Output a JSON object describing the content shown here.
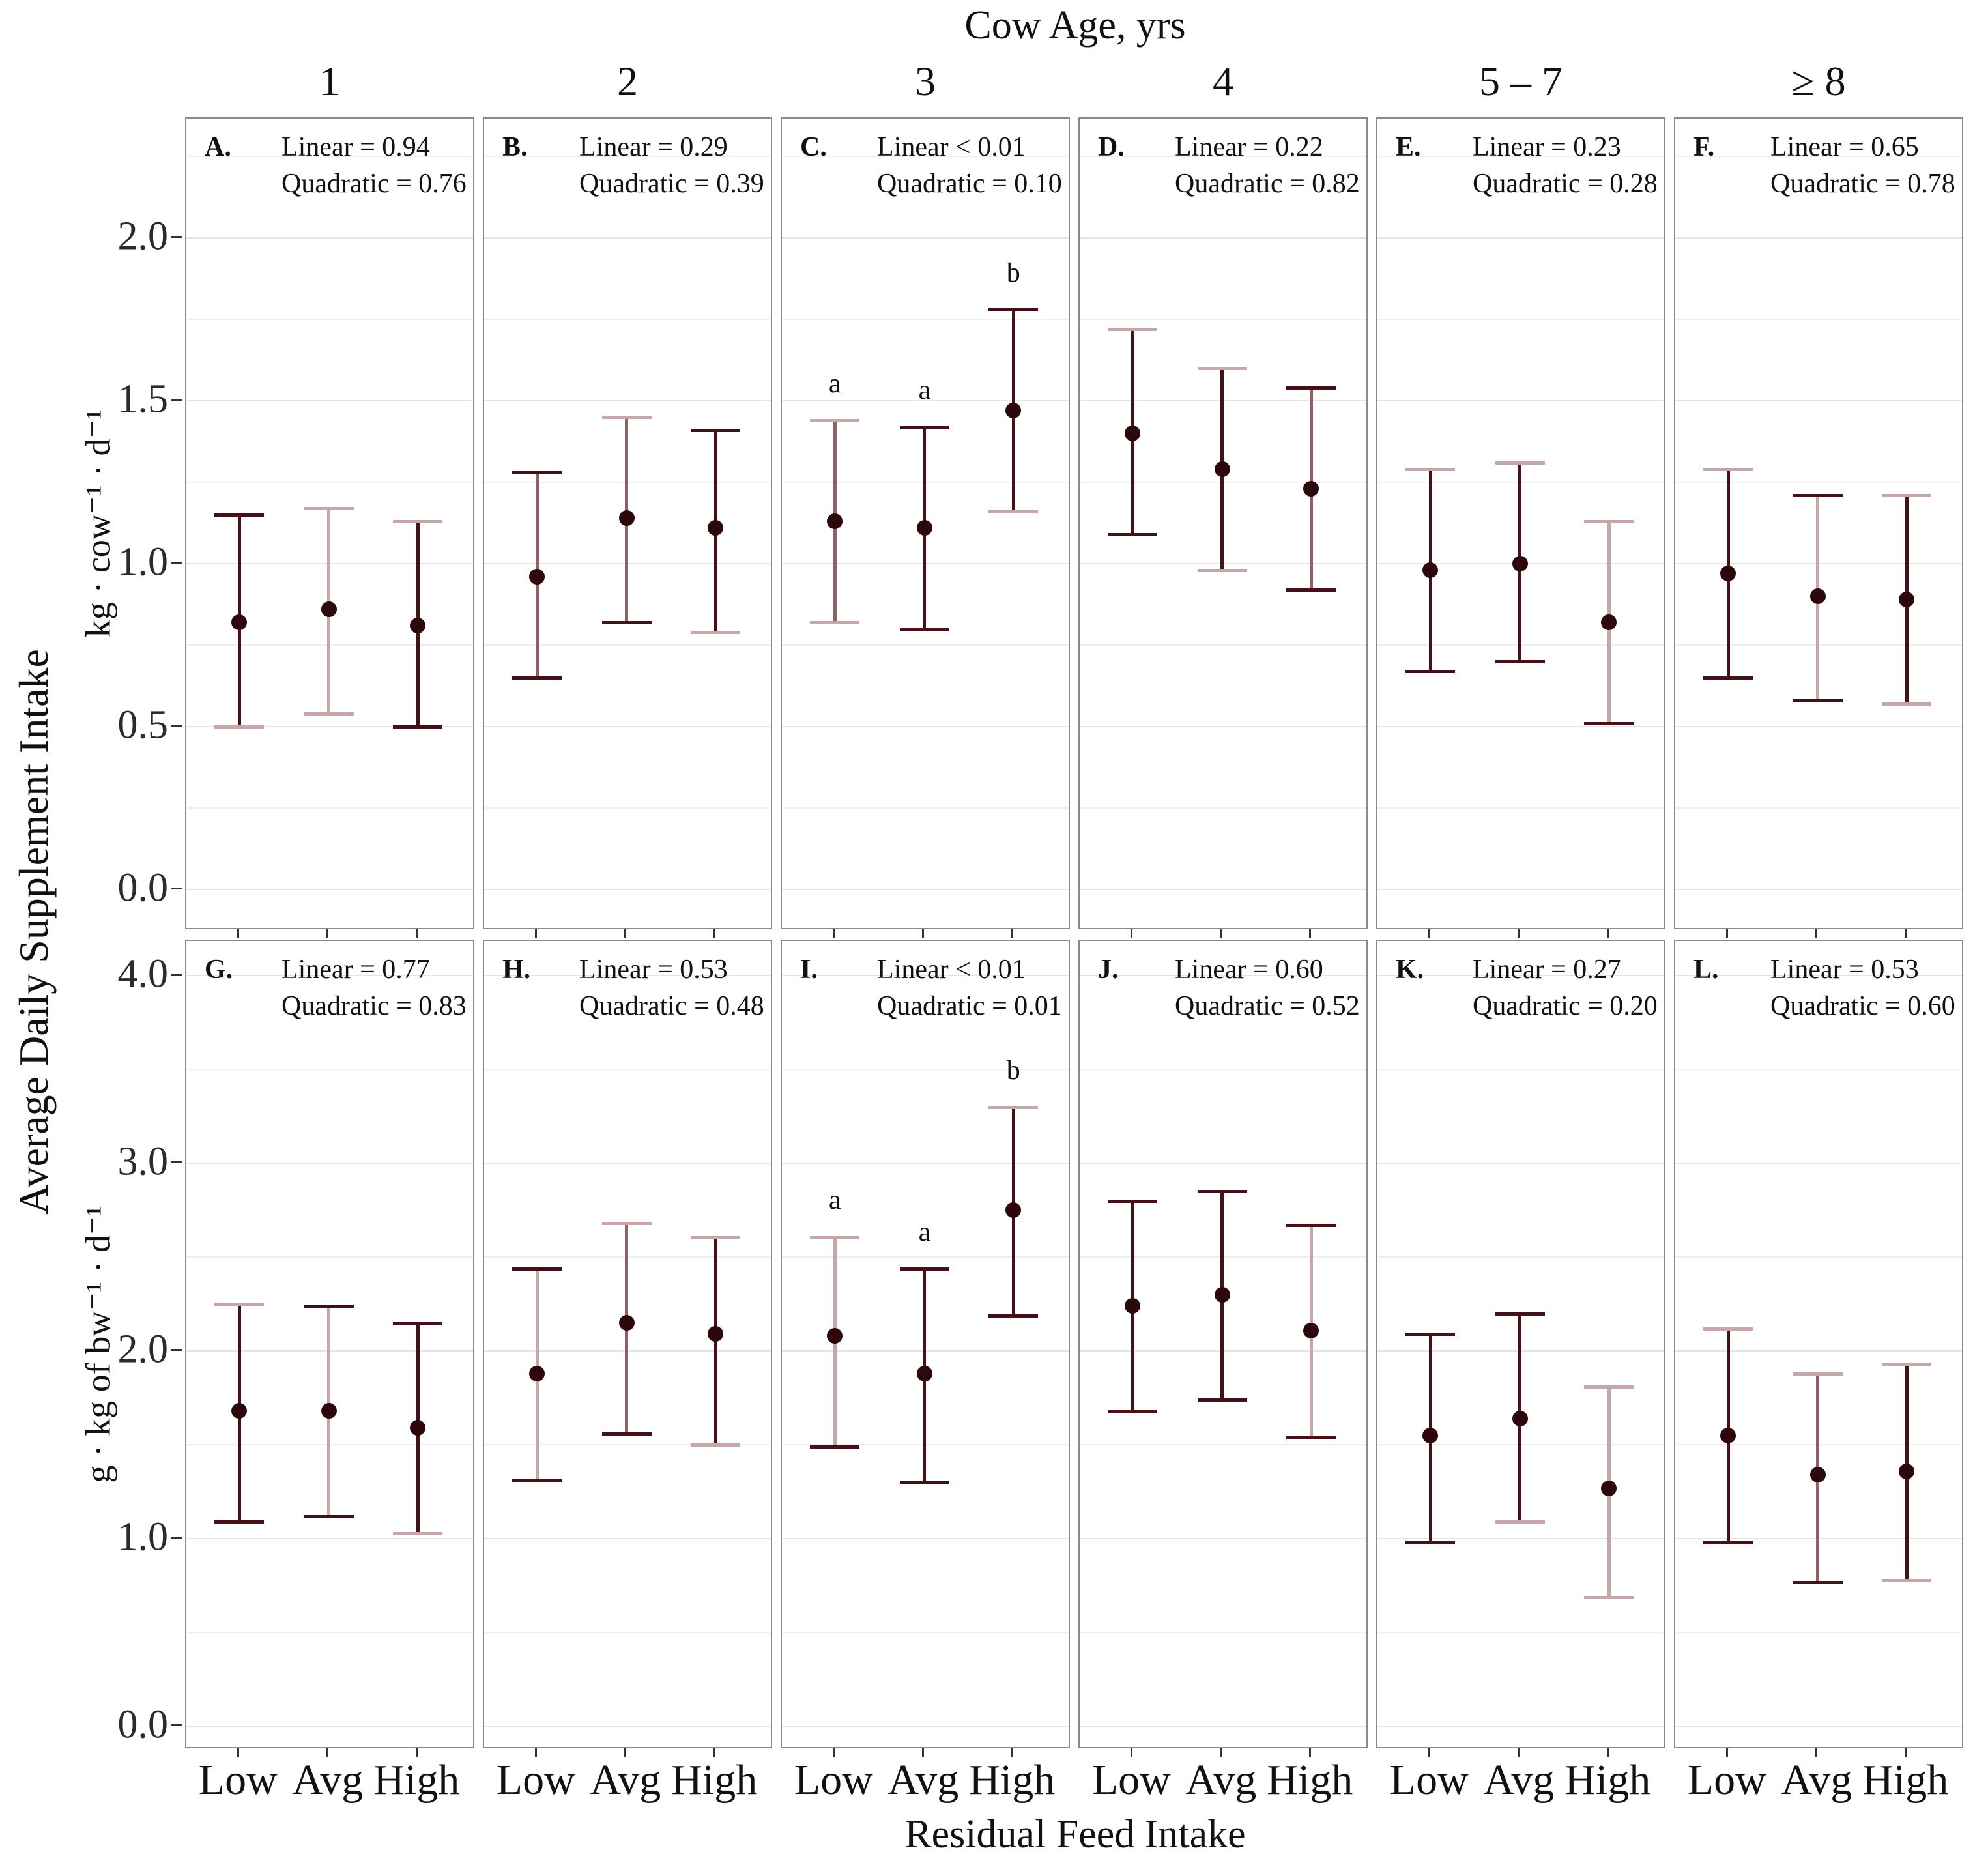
{
  "chart_data": {
    "type": "scatter",
    "subtype": "faceted-point-errorbar",
    "title": "Cow Age, yrs",
    "xlabel": "Residual Feed Intake",
    "ylabel": "Average Daily Supplement Intake",
    "facet_columns": [
      "1",
      "2",
      "3",
      "4",
      "5 – 7",
      "≥ 8"
    ],
    "x_categories": [
      "Low",
      "Avg",
      "High"
    ],
    "legend_position": "none",
    "grid": "on",
    "colors": {
      "dark": "#451016",
      "mid": "#8f6166",
      "light": "#c7a6a8",
      "point": "#2c070c",
      "grid_major": "#e4e4e4",
      "grid_minor": "#efefef",
      "panel_border": "#8a8a8a",
      "text": "#141414"
    },
    "rows": [
      {
        "unit": "kg · cow⁻¹ · d⁻¹",
        "tick_values": [
          2.0,
          1.5,
          1.0,
          0.5,
          0.0
        ],
        "tick_labels": [
          "2.0",
          "1.5",
          "1.0",
          "0.5",
          "0.0"
        ],
        "minor_step": 0.25,
        "grid_max": 2.25,
        "ylim": [
          -0.126,
          2.366
        ],
        "panels": [
          {
            "letter": "A.",
            "stats": [
              "Linear = 0.94",
              "Quadratic = 0.76"
            ],
            "points": [
              {
                "x": "Low",
                "y": 0.82,
                "lo": 0.5,
                "hi": 1.15,
                "line": "dark",
                "cap_top": "dark",
                "cap_bot": "light",
                "sig": ""
              },
              {
                "x": "Avg",
                "y": 0.86,
                "lo": 0.54,
                "hi": 1.17,
                "line": "light",
                "cap_top": "light",
                "cap_bot": "light",
                "sig": ""
              },
              {
                "x": "High",
                "y": 0.81,
                "lo": 0.5,
                "hi": 1.13,
                "line": "dark",
                "cap_top": "light",
                "cap_bot": "dark",
                "sig": ""
              }
            ]
          },
          {
            "letter": "B.",
            "stats": [
              "Linear = 0.29",
              "Quadratic = 0.39"
            ],
            "points": [
              {
                "x": "Low",
                "y": 0.96,
                "lo": 0.65,
                "hi": 1.28,
                "line": "mid",
                "cap_top": "dark",
                "cap_bot": "dark",
                "sig": ""
              },
              {
                "x": "Avg",
                "y": 1.14,
                "lo": 0.82,
                "hi": 1.45,
                "line": "mid",
                "cap_top": "light",
                "cap_bot": "dark",
                "sig": ""
              },
              {
                "x": "High",
                "y": 1.11,
                "lo": 0.79,
                "hi": 1.41,
                "line": "dark",
                "cap_top": "dark",
                "cap_bot": "light",
                "sig": ""
              }
            ]
          },
          {
            "letter": "C.",
            "stats": [
              "Linear < 0.01",
              "Quadratic = 0.10"
            ],
            "points": [
              {
                "x": "Low",
                "y": 1.13,
                "lo": 0.82,
                "hi": 1.44,
                "line": "mid",
                "cap_top": "light",
                "cap_bot": "light",
                "sig": "a"
              },
              {
                "x": "Avg",
                "y": 1.11,
                "lo": 0.8,
                "hi": 1.42,
                "line": "dark",
                "cap_top": "dark",
                "cap_bot": "dark",
                "sig": "a"
              },
              {
                "x": "High",
                "y": 1.47,
                "lo": 1.16,
                "hi": 1.78,
                "line": "dark",
                "cap_top": "dark",
                "cap_bot": "light",
                "sig": "b"
              }
            ]
          },
          {
            "letter": "D.",
            "stats": [
              "Linear = 0.22",
              "Quadratic = 0.82"
            ],
            "points": [
              {
                "x": "Low",
                "y": 1.4,
                "lo": 1.09,
                "hi": 1.72,
                "line": "dark",
                "cap_top": "light",
                "cap_bot": "dark",
                "sig": ""
              },
              {
                "x": "Avg",
                "y": 1.29,
                "lo": 0.98,
                "hi": 1.6,
                "line": "dark",
                "cap_top": "light",
                "cap_bot": "light",
                "sig": ""
              },
              {
                "x": "High",
                "y": 1.23,
                "lo": 0.92,
                "hi": 1.54,
                "line": "mid",
                "cap_top": "dark",
                "cap_bot": "dark",
                "sig": ""
              }
            ]
          },
          {
            "letter": "E.",
            "stats": [
              "Linear = 0.23",
              "Quadratic = 0.28"
            ],
            "points": [
              {
                "x": "Low",
                "y": 0.98,
                "lo": 0.67,
                "hi": 1.29,
                "line": "dark",
                "cap_top": "light",
                "cap_bot": "dark",
                "sig": ""
              },
              {
                "x": "Avg",
                "y": 1.0,
                "lo": 0.7,
                "hi": 1.31,
                "line": "dark",
                "cap_top": "light",
                "cap_bot": "dark",
                "sig": ""
              },
              {
                "x": "High",
                "y": 0.82,
                "lo": 0.51,
                "hi": 1.13,
                "line": "light",
                "cap_top": "light",
                "cap_bot": "dark",
                "sig": ""
              }
            ]
          },
          {
            "letter": "F.",
            "stats": [
              "Linear = 0.65",
              "Quadratic = 0.78"
            ],
            "points": [
              {
                "x": "Low",
                "y": 0.97,
                "lo": 0.65,
                "hi": 1.29,
                "line": "dark",
                "cap_top": "light",
                "cap_bot": "dark",
                "sig": ""
              },
              {
                "x": "Avg",
                "y": 0.9,
                "lo": 0.58,
                "hi": 1.21,
                "line": "light",
                "cap_top": "dark",
                "cap_bot": "dark",
                "sig": ""
              },
              {
                "x": "High",
                "y": 0.89,
                "lo": 0.57,
                "hi": 1.21,
                "line": "dark",
                "cap_top": "light",
                "cap_bot": "light",
                "sig": ""
              }
            ]
          }
        ]
      },
      {
        "unit": "g · kg of bw⁻¹ · d⁻¹",
        "tick_values": [
          4.0,
          3.0,
          2.0,
          1.0,
          0.0
        ],
        "tick_labels": [
          "4.0",
          "3.0",
          "2.0",
          "1.0",
          "0.0"
        ],
        "minor_step": 0.5,
        "grid_max": 4.0,
        "ylim": [
          -0.125,
          4.185
        ],
        "panels": [
          {
            "letter": "G.",
            "stats": [
              "Linear = 0.77",
              "Quadratic = 0.83"
            ],
            "points": [
              {
                "x": "Low",
                "y": 1.68,
                "lo": 1.09,
                "hi": 2.25,
                "line": "dark",
                "cap_top": "light",
                "cap_bot": "dark",
                "sig": ""
              },
              {
                "x": "Avg",
                "y": 1.68,
                "lo": 1.12,
                "hi": 2.24,
                "line": "light",
                "cap_top": "dark",
                "cap_bot": "dark",
                "sig": ""
              },
              {
                "x": "High",
                "y": 1.59,
                "lo": 1.03,
                "hi": 2.15,
                "line": "dark",
                "cap_top": "dark",
                "cap_bot": "light",
                "sig": ""
              }
            ]
          },
          {
            "letter": "H.",
            "stats": [
              "Linear = 0.53",
              "Quadratic = 0.48"
            ],
            "points": [
              {
                "x": "Low",
                "y": 1.88,
                "lo": 1.31,
                "hi": 2.44,
                "line": "light",
                "cap_top": "dark",
                "cap_bot": "dark",
                "sig": ""
              },
              {
                "x": "Avg",
                "y": 2.15,
                "lo": 1.56,
                "hi": 2.68,
                "line": "mid",
                "cap_top": "light",
                "cap_bot": "dark",
                "sig": ""
              },
              {
                "x": "High",
                "y": 2.09,
                "lo": 1.5,
                "hi": 2.61,
                "line": "dark",
                "cap_top": "light",
                "cap_bot": "light",
                "sig": ""
              }
            ]
          },
          {
            "letter": "I.",
            "stats": [
              "Linear < 0.01",
              "Quadratic = 0.01"
            ],
            "points": [
              {
                "x": "Low",
                "y": 2.08,
                "lo": 1.49,
                "hi": 2.61,
                "line": "light",
                "cap_top": "light",
                "cap_bot": "dark",
                "sig": "a"
              },
              {
                "x": "Avg",
                "y": 1.88,
                "lo": 1.3,
                "hi": 2.44,
                "line": "dark",
                "cap_top": "dark",
                "cap_bot": "dark",
                "sig": "a"
              },
              {
                "x": "High",
                "y": 2.75,
                "lo": 2.19,
                "hi": 3.3,
                "line": "dark",
                "cap_top": "light",
                "cap_bot": "dark",
                "sig": "b"
              }
            ]
          },
          {
            "letter": "J.",
            "stats": [
              "Linear = 0.60",
              "Quadratic = 0.52"
            ],
            "points": [
              {
                "x": "Low",
                "y": 2.24,
                "lo": 1.68,
                "hi": 2.8,
                "line": "dark",
                "cap_top": "dark",
                "cap_bot": "dark",
                "sig": ""
              },
              {
                "x": "Avg",
                "y": 2.3,
                "lo": 1.74,
                "hi": 2.85,
                "line": "dark",
                "cap_top": "dark",
                "cap_bot": "dark",
                "sig": ""
              },
              {
                "x": "High",
                "y": 2.11,
                "lo": 1.54,
                "hi": 2.67,
                "line": "light",
                "cap_top": "dark",
                "cap_bot": "dark",
                "sig": ""
              }
            ]
          },
          {
            "letter": "K.",
            "stats": [
              "Linear = 0.27",
              "Quadratic = 0.20"
            ],
            "points": [
              {
                "x": "Low",
                "y": 1.55,
                "lo": 0.98,
                "hi": 2.09,
                "line": "dark",
                "cap_top": "dark",
                "cap_bot": "dark",
                "sig": ""
              },
              {
                "x": "Avg",
                "y": 1.64,
                "lo": 1.09,
                "hi": 2.2,
                "line": "dark",
                "cap_top": "dark",
                "cap_bot": "light",
                "sig": ""
              },
              {
                "x": "High",
                "y": 1.27,
                "lo": 0.69,
                "hi": 1.81,
                "line": "light",
                "cap_top": "light",
                "cap_bot": "light",
                "sig": ""
              }
            ]
          },
          {
            "letter": "L.",
            "stats": [
              "Linear = 0.53",
              "Quadratic = 0.60"
            ],
            "points": [
              {
                "x": "Low",
                "y": 1.55,
                "lo": 0.98,
                "hi": 2.12,
                "line": "dark",
                "cap_top": "light",
                "cap_bot": "dark",
                "sig": ""
              },
              {
                "x": "Avg",
                "y": 1.34,
                "lo": 0.77,
                "hi": 1.88,
                "line": "mid",
                "cap_top": "light",
                "cap_bot": "dark",
                "sig": ""
              },
              {
                "x": "High",
                "y": 1.36,
                "lo": 0.78,
                "hi": 1.93,
                "line": "dark",
                "cap_top": "light",
                "cap_bot": "light",
                "sig": ""
              }
            ]
          }
        ]
      }
    ]
  }
}
